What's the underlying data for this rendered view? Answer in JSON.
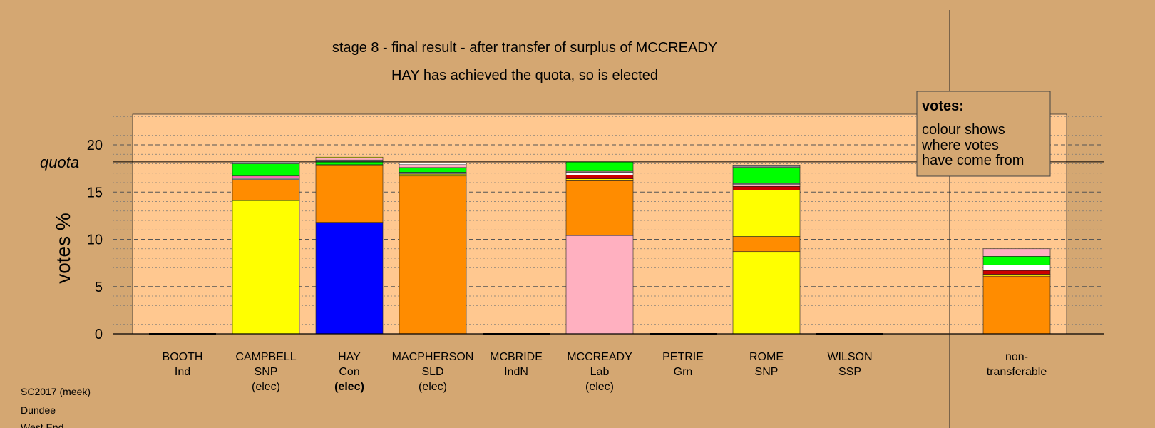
{
  "chart_data": {
    "type": "bar",
    "stacked": true,
    "title": "stage 8 - final result - after transfer of surplus of MCCREADY",
    "subtitle": "HAY has achieved the quota, so is elected",
    "ylabel": "votes %",
    "ylim": [
      0,
      23
    ],
    "yticks": [
      0,
      5,
      10,
      15,
      20
    ],
    "quota": 18.2,
    "quota_label": "quota",
    "categories": [
      {
        "name": "BOOTH",
        "party": "Ind",
        "status": ""
      },
      {
        "name": "CAMPBELL",
        "party": "SNP",
        "status": "(elec)"
      },
      {
        "name": "HAY",
        "party": "Con",
        "status": "(elec)"
      },
      {
        "name": "MACPHERSON",
        "party": "SLD",
        "status": "(elec)"
      },
      {
        "name": "MCBRIDE",
        "party": "IndN",
        "status": ""
      },
      {
        "name": "MCCREADY",
        "party": "Lab",
        "status": "(elec)"
      },
      {
        "name": "PETRIE",
        "party": "Grn",
        "status": ""
      },
      {
        "name": "ROME",
        "party": "SNP",
        "status": ""
      },
      {
        "name": "WILSON",
        "party": "SSP",
        "status": ""
      },
      {
        "name": "non-",
        "party": "transferable",
        "status": ""
      }
    ],
    "stacks": [
      [],
      [
        {
          "color": "#ffff00",
          "value": 14.1
        },
        {
          "color": "#ff8c00",
          "value": 2.2
        },
        {
          "color": "#888888",
          "value": 0.2
        },
        {
          "color": "#ff69b4",
          "value": 0.2
        },
        {
          "color": "#00ff00",
          "value": 1.3
        },
        {
          "color": "#ffffff",
          "value": 0.2
        }
      ],
      [
        {
          "color": "#0000ff",
          "value": 11.8
        },
        {
          "color": "#ff8c00",
          "value": 6.0
        },
        {
          "color": "#ffffff",
          "value": 0.1
        },
        {
          "color": "#00ff00",
          "value": 0.3
        },
        {
          "color": "#888888",
          "value": 0.2
        },
        {
          "color": "#ffb0c0",
          "value": 0.2
        },
        {
          "color": "#ffff00",
          "value": 0.1
        }
      ],
      [
        {
          "color": "#ff8c00",
          "value": 16.7
        },
        {
          "color": "#ffff00",
          "value": 0.2
        },
        {
          "color": "#888888",
          "value": 0.2
        },
        {
          "color": "#00ff00",
          "value": 0.5
        },
        {
          "color": "#ffb0c0",
          "value": 0.3
        },
        {
          "color": "#ffffff",
          "value": 0.2
        }
      ],
      [],
      [
        {
          "color": "#ffb0c0",
          "value": 10.4
        },
        {
          "color": "#ff8c00",
          "value": 5.8
        },
        {
          "color": "#ffff00",
          "value": 0.2
        },
        {
          "color": "#cc0000",
          "value": 0.4
        },
        {
          "color": "#ffffff",
          "value": 0.3
        },
        {
          "color": "#ffb0c0",
          "value": 0.1
        },
        {
          "color": "#00ff00",
          "value": 1.0
        }
      ],
      [],
      [
        {
          "color": "#ffff00",
          "value": 8.7
        },
        {
          "color": "#ff8c00",
          "value": 1.6
        },
        {
          "color": "#ffff00",
          "value": 4.9
        },
        {
          "color": "#cc0000",
          "value": 0.4
        },
        {
          "color": "#ffb0c0",
          "value": 0.2
        },
        {
          "color": "#ffffff",
          "value": 0.1
        },
        {
          "color": "#00ff00",
          "value": 1.7
        },
        {
          "color": "#888888",
          "value": 0.2
        }
      ],
      [],
      [
        {
          "color": "#ff8c00",
          "value": 6.1
        },
        {
          "color": "#ffff00",
          "value": 0.2
        },
        {
          "color": "#cc0000",
          "value": 0.4
        },
        {
          "color": "#ffffff",
          "value": 0.6
        },
        {
          "color": "#00ff00",
          "value": 0.9
        },
        {
          "color": "#ffb0c0",
          "value": 0.8
        }
      ]
    ],
    "legend": {
      "title": "votes:",
      "lines": [
        "colour shows",
        "where votes",
        "have come from"
      ],
      "placement": "top-right"
    },
    "footer": [
      "SC2017 (meek)",
      "Dundee",
      "West End"
    ]
  }
}
